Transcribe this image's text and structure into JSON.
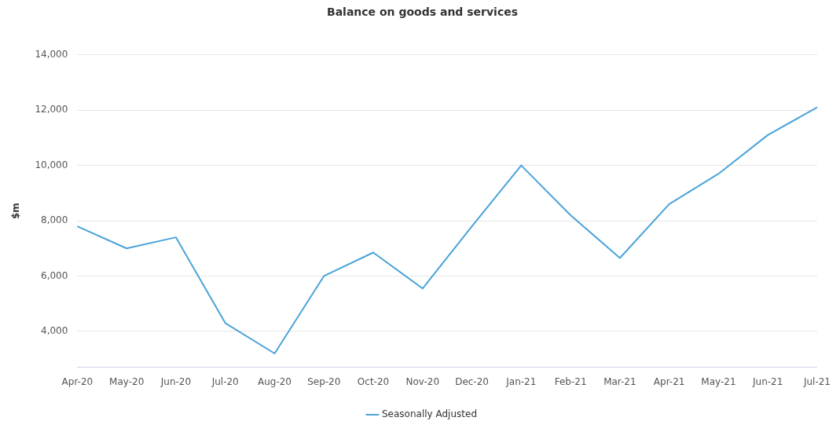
{
  "chart_data": {
    "type": "line",
    "title": "Balance on goods and services",
    "ylabel": "$m",
    "categories": [
      "Apr-20",
      "May-20",
      "Jun-20",
      "Jul-20",
      "Aug-20",
      "Sep-20",
      "Oct-20",
      "Nov-20",
      "Dec-20",
      "Jan-21",
      "Feb-21",
      "Mar-21",
      "Apr-21",
      "May-21",
      "Jun-21",
      "Jul-21"
    ],
    "series": [
      {
        "name": "Seasonally Adjusted",
        "color": "#4aa3d8",
        "values": [
          7800,
          7000,
          7400,
          4300,
          3200,
          6000,
          6850,
          5550,
          7800,
          10000,
          8200,
          6650,
          8600,
          9700,
          11100,
          12100
        ]
      }
    ],
    "ylim": [
      2700,
      14000
    ],
    "yticks": [
      {
        "value": 4000,
        "label": "4,000"
      },
      {
        "value": 6000,
        "label": "6,000"
      },
      {
        "value": 8000,
        "label": "8,000"
      },
      {
        "value": 10000,
        "label": "10,000"
      },
      {
        "value": 12000,
        "label": "12,000"
      },
      {
        "value": 14000,
        "label": "14,000"
      }
    ],
    "grid": "y",
    "legend": "bottom",
    "marker": "none",
    "line_style": "solid"
  }
}
